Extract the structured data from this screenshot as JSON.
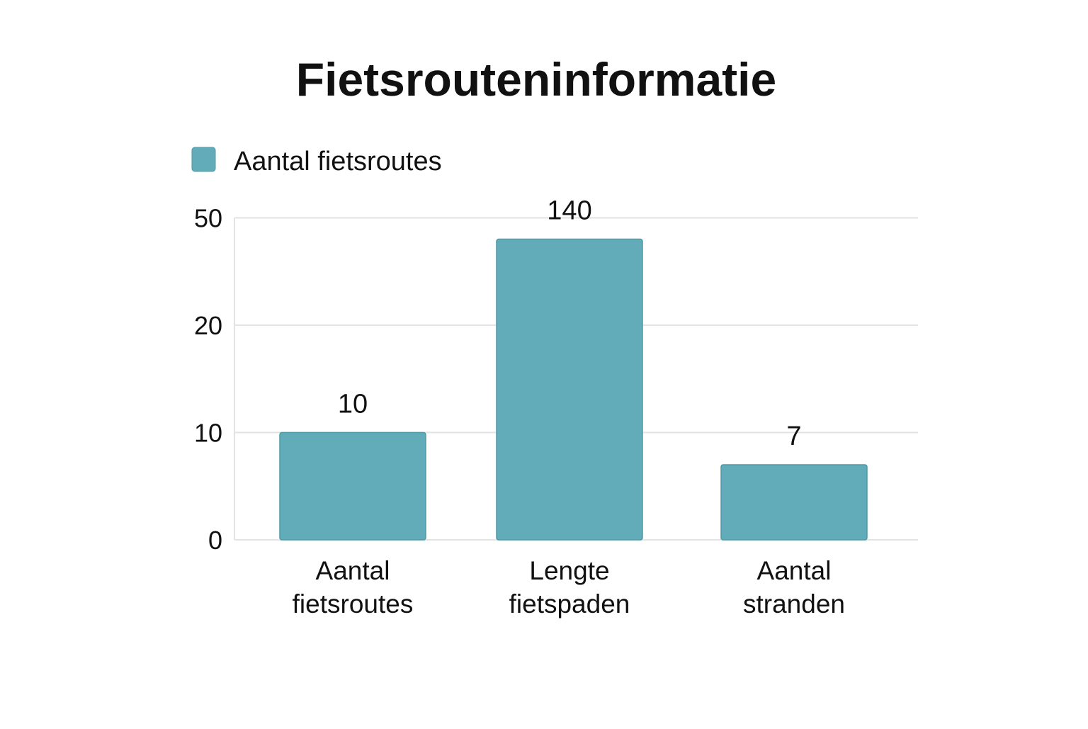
{
  "chart_data": {
    "type": "bar",
    "title": "Fietsrouteninformatie",
    "xlabel": "",
    "ylabel": "",
    "legend": {
      "position": "top-left",
      "entries": [
        "Aantal fietsroutes"
      ]
    },
    "categories": [
      [
        "Aantal",
        "fietsroutes"
      ],
      [
        "Lengte",
        "fietspaden"
      ],
      [
        "Aantal",
        "stranden"
      ]
    ],
    "series": [
      {
        "name": "Aantal fietsroutes",
        "values": [
          10,
          140,
          7
        ],
        "value_labels": [
          "10",
          "140",
          "7"
        ]
      }
    ],
    "y_ticks": [
      "0",
      "10",
      "20",
      "50"
    ],
    "y_tick_values": [
      0,
      10,
      20,
      50
    ],
    "y_scale": "non-linear (equally spaced ticks 0, 10, 20, 50)",
    "grid": true,
    "colors": {
      "bar": "#61acb8",
      "bar_stroke": "#4e9aa6",
      "grid": "#e3e3e3",
      "text": "#111111"
    }
  }
}
